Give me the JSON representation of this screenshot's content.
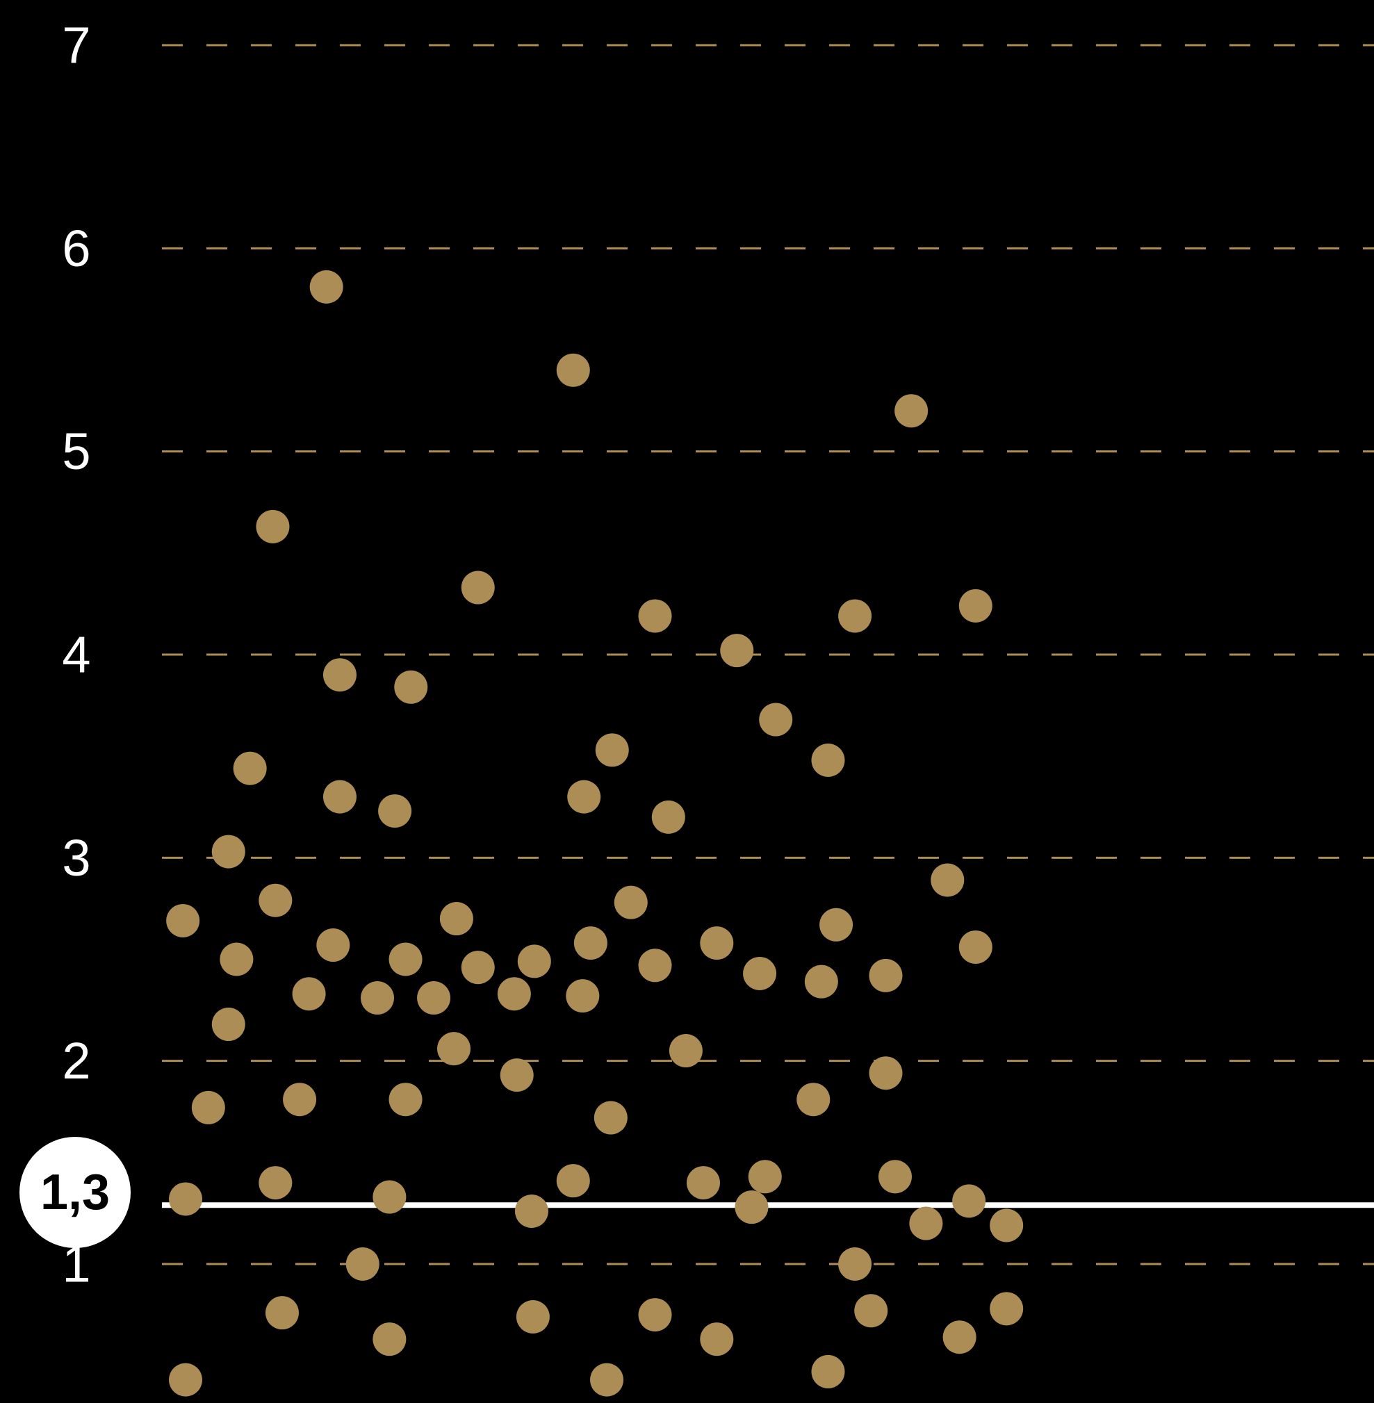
{
  "chart_data": {
    "type": "scatter",
    "title": "",
    "xlabel": "",
    "ylabel": "",
    "ylim": [
      0.42,
      7.22
    ],
    "xlim": [
      0,
      90
    ],
    "y_ticks": [
      "1",
      "2",
      "3",
      "4",
      "5",
      "6",
      "7"
    ],
    "grid": "dashed horizontal",
    "reference_line": {
      "value": 1.3,
      "label": "1,3"
    },
    "colors": {
      "background": "#000000",
      "points": "#AB8D55",
      "grid": "#AB8D55",
      "reference_line": "#FFFFFF",
      "text": "#FFFFFF"
    },
    "points": [
      {
        "x": 1.2,
        "y": 2.69
      },
      {
        "x": 1.4,
        "y": 1.32
      },
      {
        "x": 1.4,
        "y": 0.43
      },
      {
        "x": 3.1,
        "y": 1.77
      },
      {
        "x": 4.6,
        "y": 3.03
      },
      {
        "x": 4.6,
        "y": 2.18
      },
      {
        "x": 5.2,
        "y": 2.5
      },
      {
        "x": 6.2,
        "y": 3.44
      },
      {
        "x": 7.9,
        "y": 4.63
      },
      {
        "x": 8.1,
        "y": 2.79
      },
      {
        "x": 8.1,
        "y": 1.4
      },
      {
        "x": 8.6,
        "y": 0.76
      },
      {
        "x": 9.9,
        "y": 1.81
      },
      {
        "x": 10.6,
        "y": 2.33
      },
      {
        "x": 11.9,
        "y": 5.81
      },
      {
        "x": 12.4,
        "y": 2.57
      },
      {
        "x": 12.9,
        "y": 3.9
      },
      {
        "x": 12.9,
        "y": 3.3
      },
      {
        "x": 14.6,
        "y": 1.0
      },
      {
        "x": 15.7,
        "y": 2.31
      },
      {
        "x": 17.0,
        "y": 3.23
      },
      {
        "x": 16.6,
        "y": 1.33
      },
      {
        "x": 16.6,
        "y": 0.63
      },
      {
        "x": 18.2,
        "y": 3.84
      },
      {
        "x": 17.8,
        "y": 2.5
      },
      {
        "x": 17.8,
        "y": 1.81
      },
      {
        "x": 19.9,
        "y": 2.31
      },
      {
        "x": 21.6,
        "y": 2.7
      },
      {
        "x": 21.4,
        "y": 2.06
      },
      {
        "x": 23.2,
        "y": 4.33
      },
      {
        "x": 23.2,
        "y": 2.46
      },
      {
        "x": 25.9,
        "y": 2.33
      },
      {
        "x": 26.1,
        "y": 1.93
      },
      {
        "x": 27.4,
        "y": 2.49
      },
      {
        "x": 27.2,
        "y": 1.26
      },
      {
        "x": 27.3,
        "y": 0.74
      },
      {
        "x": 30.3,
        "y": 5.4
      },
      {
        "x": 30.3,
        "y": 1.41
      },
      {
        "x": 31.1,
        "y": 3.3
      },
      {
        "x": 31.6,
        "y": 2.58
      },
      {
        "x": 31.0,
        "y": 2.32
      },
      {
        "x": 32.8,
        "y": 0.43
      },
      {
        "x": 33.2,
        "y": 3.53
      },
      {
        "x": 33.1,
        "y": 1.72
      },
      {
        "x": 34.6,
        "y": 2.78
      },
      {
        "x": 36.4,
        "y": 4.19
      },
      {
        "x": 36.4,
        "y": 2.47
      },
      {
        "x": 36.4,
        "y": 0.75
      },
      {
        "x": 37.4,
        "y": 3.2
      },
      {
        "x": 38.7,
        "y": 2.05
      },
      {
        "x": 40.0,
        "y": 1.4
      },
      {
        "x": 41.0,
        "y": 2.58
      },
      {
        "x": 41.0,
        "y": 0.63
      },
      {
        "x": 42.5,
        "y": 4.02
      },
      {
        "x": 44.2,
        "y": 2.43
      },
      {
        "x": 44.6,
        "y": 1.43
      },
      {
        "x": 43.6,
        "y": 1.28
      },
      {
        "x": 45.4,
        "y": 3.68
      },
      {
        "x": 48.2,
        "y": 1.81
      },
      {
        "x": 48.8,
        "y": 2.39
      },
      {
        "x": 49.3,
        "y": 3.48
      },
      {
        "x": 49.9,
        "y": 2.67
      },
      {
        "x": 49.3,
        "y": 0.47
      },
      {
        "x": 51.3,
        "y": 4.19
      },
      {
        "x": 51.3,
        "y": 1.0
      },
      {
        "x": 52.5,
        "y": 0.77
      },
      {
        "x": 53.6,
        "y": 2.42
      },
      {
        "x": 53.6,
        "y": 1.94
      },
      {
        "x": 54.3,
        "y": 1.43
      },
      {
        "x": 55.5,
        "y": 5.2
      },
      {
        "x": 56.6,
        "y": 1.2
      },
      {
        "x": 58.2,
        "y": 2.89
      },
      {
        "x": 59.1,
        "y": 0.64
      },
      {
        "x": 60.3,
        "y": 4.24
      },
      {
        "x": 60.3,
        "y": 2.56
      },
      {
        "x": 59.8,
        "y": 1.31
      },
      {
        "x": 62.6,
        "y": 1.19
      },
      {
        "x": 62.6,
        "y": 0.78
      }
    ]
  }
}
